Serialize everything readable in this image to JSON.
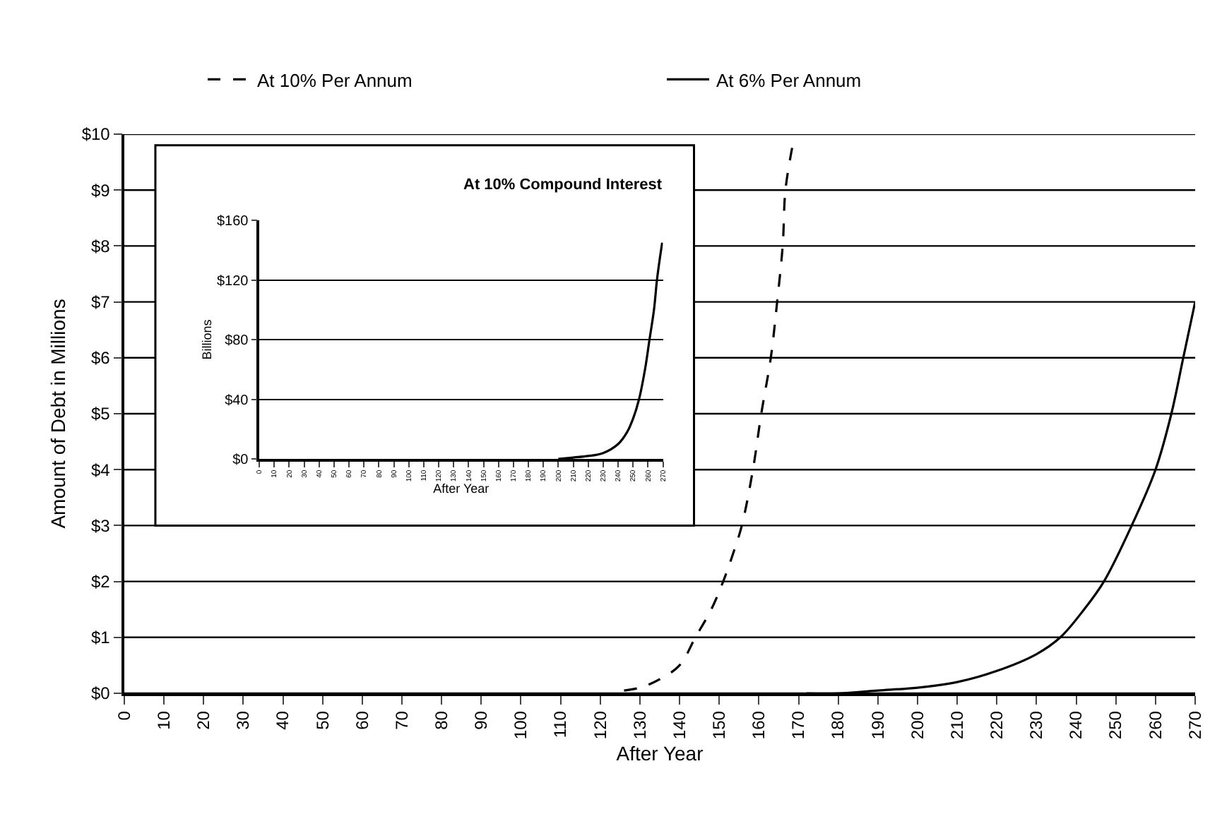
{
  "chart_data": [
    {
      "type": "line",
      "xlabel": "After Year",
      "ylabel": "Amount of Debt in Millions",
      "legend": "top",
      "grid": "y",
      "xlim": [
        0,
        270
      ],
      "ylim": [
        0,
        10
      ],
      "xticks": [
        0,
        10,
        20,
        30,
        40,
        50,
        60,
        70,
        80,
        90,
        100,
        110,
        120,
        130,
        140,
        150,
        160,
        170,
        180,
        190,
        200,
        210,
        220,
        230,
        240,
        250,
        260,
        270
      ],
      "yticks": [
        {
          "value": 0,
          "label": "$0"
        },
        {
          "value": 1,
          "label": "$1"
        },
        {
          "value": 2,
          "label": "$2"
        },
        {
          "value": 3,
          "label": "$3"
        },
        {
          "value": 4,
          "label": "$4"
        },
        {
          "value": 5,
          "label": "$5"
        },
        {
          "value": 6,
          "label": "$6"
        },
        {
          "value": 7,
          "label": "$7"
        },
        {
          "value": 8,
          "label": "$8"
        },
        {
          "value": 9,
          "label": "$9"
        },
        {
          "value": 10,
          "label": "$10"
        }
      ],
      "series": [
        {
          "name": "At 10% Per Annum",
          "color": "#000000",
          "line_style": "dashed",
          "x": [
            126,
            130,
            135,
            140,
            144,
            148,
            151,
            153.5,
            155.7,
            158.5,
            160.6,
            163,
            164.6,
            166,
            166.7,
            168.5
          ],
          "values": [
            0.05,
            0.1,
            0.25,
            0.5,
            1,
            1.5,
            2,
            2.5,
            3,
            4,
            5,
            6,
            7,
            8,
            9,
            9.8
          ]
        },
        {
          "name": "At 6% Per Annum",
          "color": "#000000",
          "line_style": "solid",
          "x": [
            172,
            180,
            190,
            200,
            210,
            220,
            230,
            236,
            242,
            247,
            254,
            260,
            264,
            267,
            270
          ],
          "values": [
            0,
            0,
            0.05,
            0.1,
            0.2,
            0.4,
            0.7,
            1,
            1.5,
            2,
            3,
            4,
            5,
            6,
            7
          ]
        }
      ]
    },
    {
      "type": "line",
      "title": "At 10% Compound Interest",
      "xlabel": "After Year",
      "ylabel": "Billions",
      "grid": "y",
      "xlim": [
        0,
        270
      ],
      "ylim": [
        0,
        160
      ],
      "xticks": [
        0,
        10,
        20,
        30,
        40,
        50,
        60,
        70,
        80,
        90,
        100,
        110,
        120,
        130,
        140,
        150,
        160,
        170,
        180,
        190,
        200,
        210,
        220,
        230,
        240,
        250,
        260,
        270
      ],
      "yticks": [
        {
          "value": 0,
          "label": "$0"
        },
        {
          "value": 40,
          "label": "$40"
        },
        {
          "value": 80,
          "label": "$80"
        },
        {
          "value": 120,
          "label": "$120"
        },
        {
          "value": 160,
          "label": "$160"
        }
      ],
      "series": [
        {
          "color": "#000000",
          "line_style": "solid",
          "x": [
            200,
            210,
            220,
            230,
            240,
            246,
            250,
            254,
            258,
            261,
            264,
            266,
            268,
            269.5
          ],
          "values": [
            0,
            1,
            2,
            4,
            10,
            18,
            27,
            40,
            60,
            80,
            100,
            120,
            135,
            145
          ]
        }
      ]
    }
  ]
}
